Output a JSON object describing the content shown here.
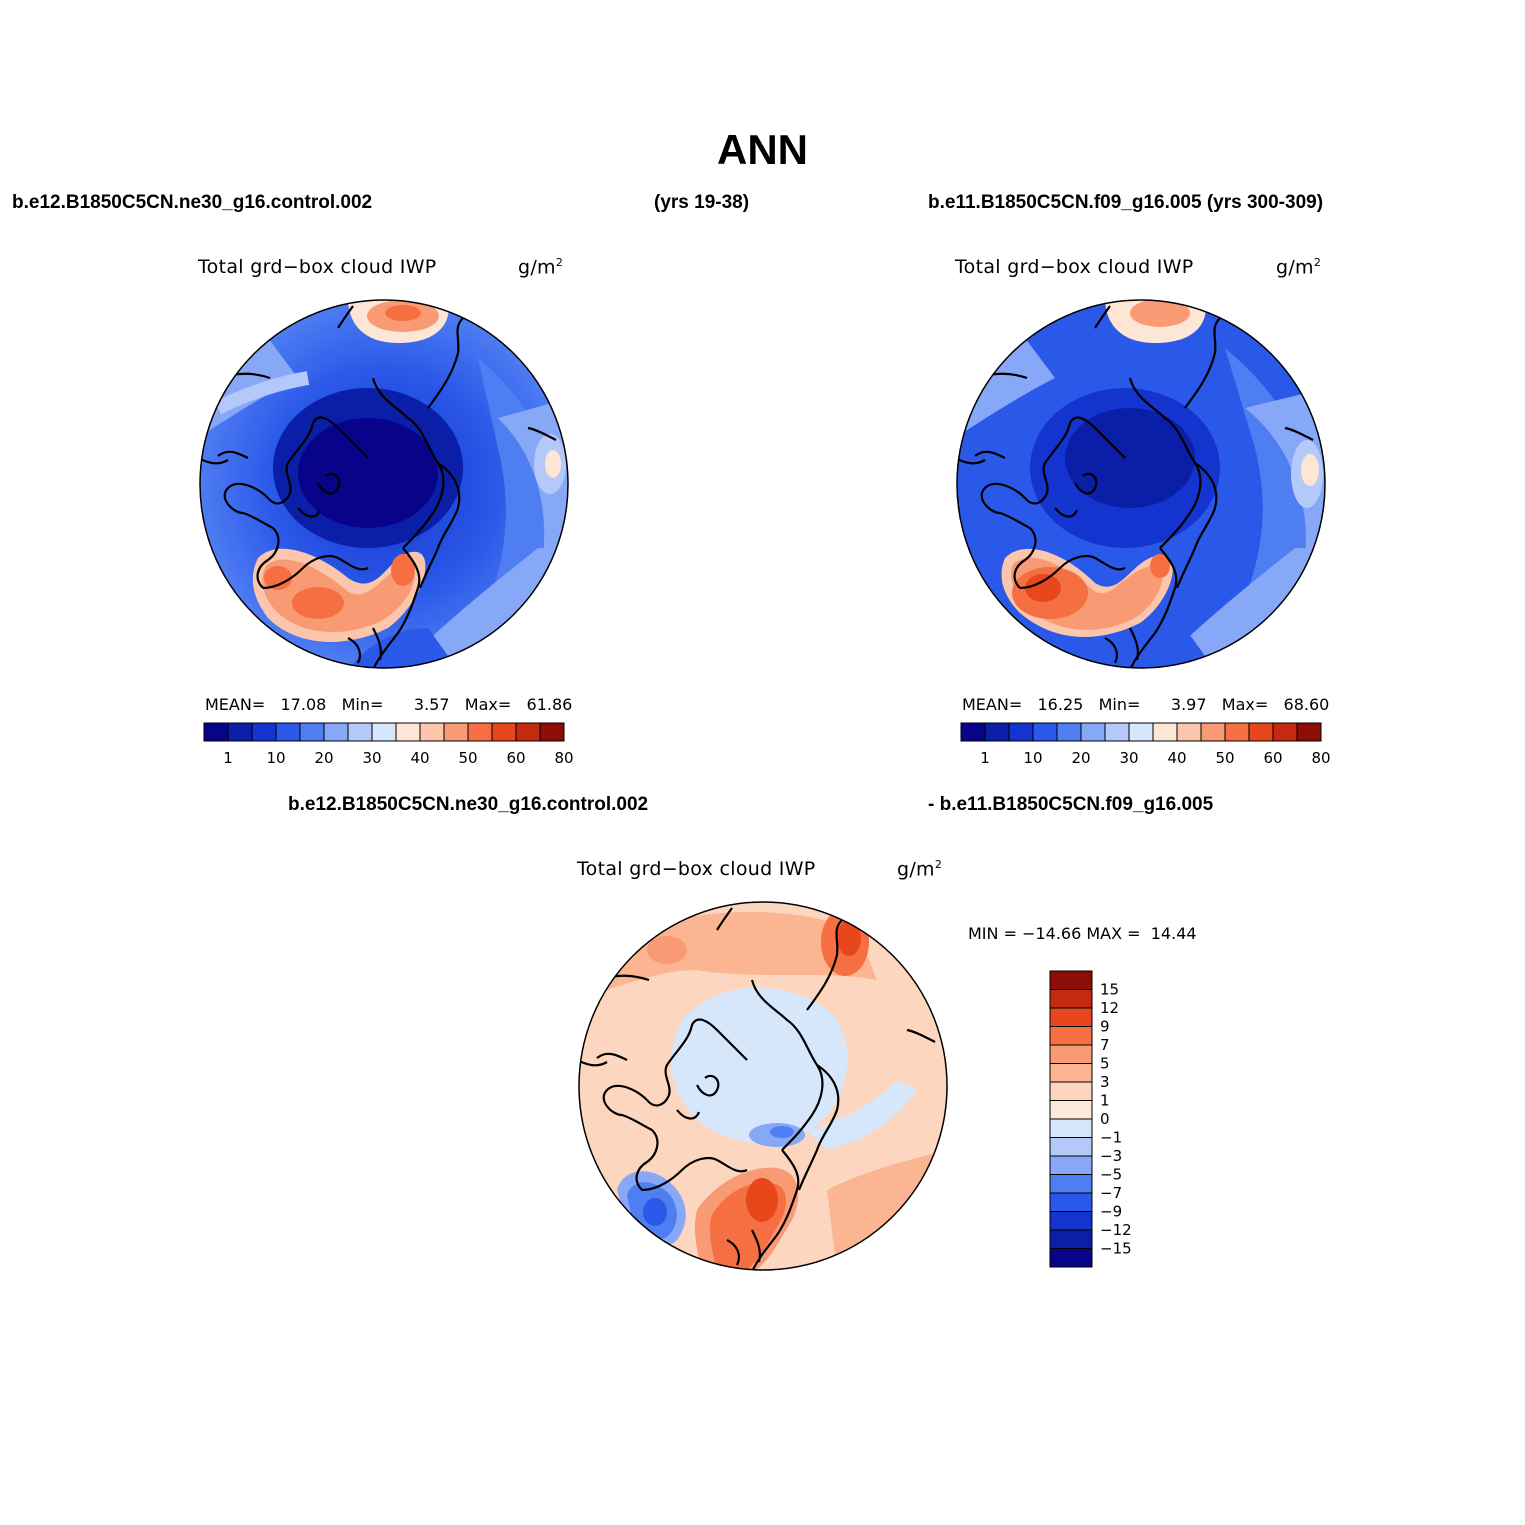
{
  "title": "ANN",
  "header": {
    "case1_name": "b.e12.B1850C5CN.ne30_g16.control.002",
    "case1_years": "(yrs 19-38)",
    "case2_full": "b.e11.B1850C5CN.f09_g16.005 (yrs 300-309)",
    "diff_case1": "b.e12.B1850C5CN.ne30_g16.control.002",
    "diff_case2": "- b.e11.B1850C5CN.f09_g16.005"
  },
  "chart_data": [
    {
      "type": "heatmap",
      "projection": "polar-stereographic-north",
      "title": "Total grd−box cloud IWP",
      "units": "g/m",
      "units_sup": "2",
      "stats": {
        "mean_label": "MEAN=",
        "mean": "17.08",
        "min_label": "Min=",
        "min": "3.57",
        "max_label": "Max=",
        "max": "61.86"
      },
      "colorbar": {
        "orientation": "horizontal",
        "levels": [
          "1",
          "10",
          "20",
          "30",
          "40",
          "50",
          "60",
          "80"
        ],
        "colors": [
          "#08048a",
          "#0b1ea8",
          "#1434d0",
          "#2a58e8",
          "#4f7df2",
          "#86a8f7",
          "#b4c9fa",
          "#d6e6fb",
          "#fde6d6",
          "#fbc6ac",
          "#f89a74",
          "#f56f43",
          "#e8471c",
          "#c42a10",
          "#8e0d06"
        ]
      },
      "regions": {
        "low": "central Arctic basin",
        "high": [
          "North Atlantic south of Greenland",
          "Norwegian Sea",
          "North Pacific edge"
        ]
      }
    },
    {
      "type": "heatmap",
      "projection": "polar-stereographic-north",
      "title": "Total grd−box cloud IWP",
      "units": "g/m",
      "units_sup": "2",
      "stats": {
        "mean_label": "MEAN=",
        "mean": "16.25",
        "min_label": "Min=",
        "min": "3.97",
        "max_label": "Max=",
        "max": "68.60"
      },
      "colorbar": {
        "orientation": "horizontal",
        "levels": [
          "1",
          "10",
          "20",
          "30",
          "40",
          "50",
          "60",
          "80"
        ],
        "colors": [
          "#08048a",
          "#0b1ea8",
          "#1434d0",
          "#2a58e8",
          "#4f7df2",
          "#86a8f7",
          "#b4c9fa",
          "#d6e6fb",
          "#fde6d6",
          "#fbc6ac",
          "#f89a74",
          "#f56f43",
          "#e8471c",
          "#c42a10",
          "#8e0d06"
        ]
      }
    },
    {
      "type": "heatmap",
      "projection": "polar-stereographic-north",
      "title": "Total grd−box cloud IWP",
      "units": "g/m",
      "units_sup": "2",
      "stats": {
        "text": "MIN = −14.66 MAX =  14.44",
        "min": -14.66,
        "max": 14.44
      },
      "colorbar": {
        "orientation": "vertical",
        "levels": [
          "15",
          "12",
          "9",
          "7",
          "5",
          "3",
          "1",
          "0",
          "−1",
          "−3",
          "−5",
          "−7",
          "−9",
          "−12",
          "−15"
        ],
        "colors": [
          "#8e0d06",
          "#c42a10",
          "#e8471c",
          "#f56f43",
          "#f89a74",
          "#fbb592",
          "#fcd6be",
          "#fde9db",
          "#d6e6fb",
          "#b4c9fa",
          "#86a8f7",
          "#4f7df2",
          "#2a58e8",
          "#1434d0",
          "#0b1ea8",
          "#08048a"
        ]
      }
    }
  ]
}
